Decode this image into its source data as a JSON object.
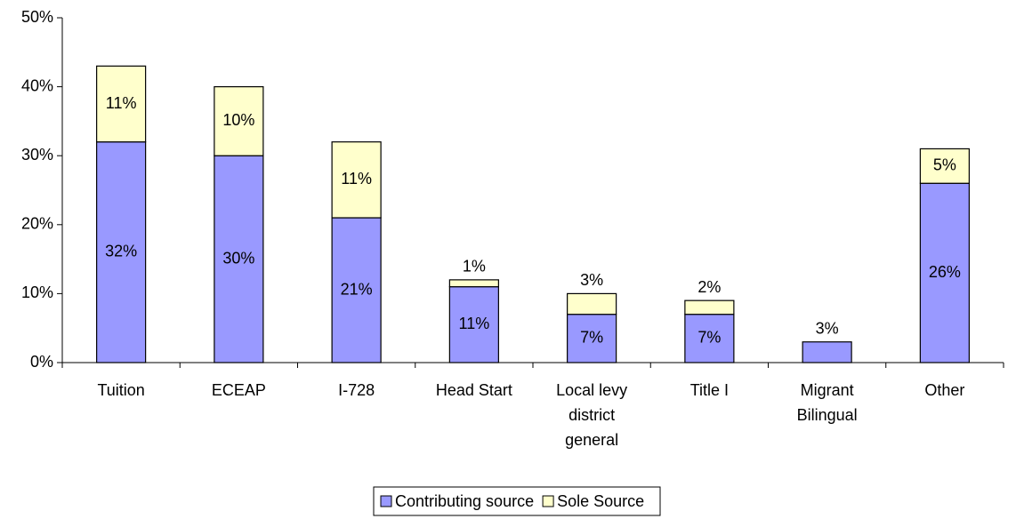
{
  "chart_data": {
    "type": "stacked_bar",
    "categories": [
      "Tuition",
      "ECEAP",
      "I-728",
      "Head Start",
      "Local levy district general",
      "Title I",
      "Migrant Bilingual",
      "Other"
    ],
    "series": [
      {
        "name": "Contributing source",
        "color": "#9999ff",
        "values": [
          32,
          30,
          21,
          11,
          7,
          7,
          3,
          26
        ],
        "value_labels": [
          "32%",
          "30%",
          "21%",
          "11%",
          "7%",
          "7%",
          "3%",
          "26%"
        ]
      },
      {
        "name": "Sole Source",
        "color": "#ffffcc",
        "values": [
          11,
          10,
          11,
          1,
          3,
          2,
          0,
          5
        ],
        "value_labels": [
          "11%",
          "10%",
          "11%",
          "1%",
          "3%",
          "2%",
          null,
          "5%"
        ]
      }
    ],
    "ylim": [
      0,
      50
    ],
    "yticks": [
      {
        "value": 0,
        "label": "0%"
      },
      {
        "value": 10,
        "label": "10%"
      },
      {
        "value": 20,
        "label": "20%"
      },
      {
        "value": 30,
        "label": "30%"
      },
      {
        "value": 40,
        "label": "40%"
      },
      {
        "value": 50,
        "label": "50%"
      }
    ],
    "legend": "bottom"
  }
}
